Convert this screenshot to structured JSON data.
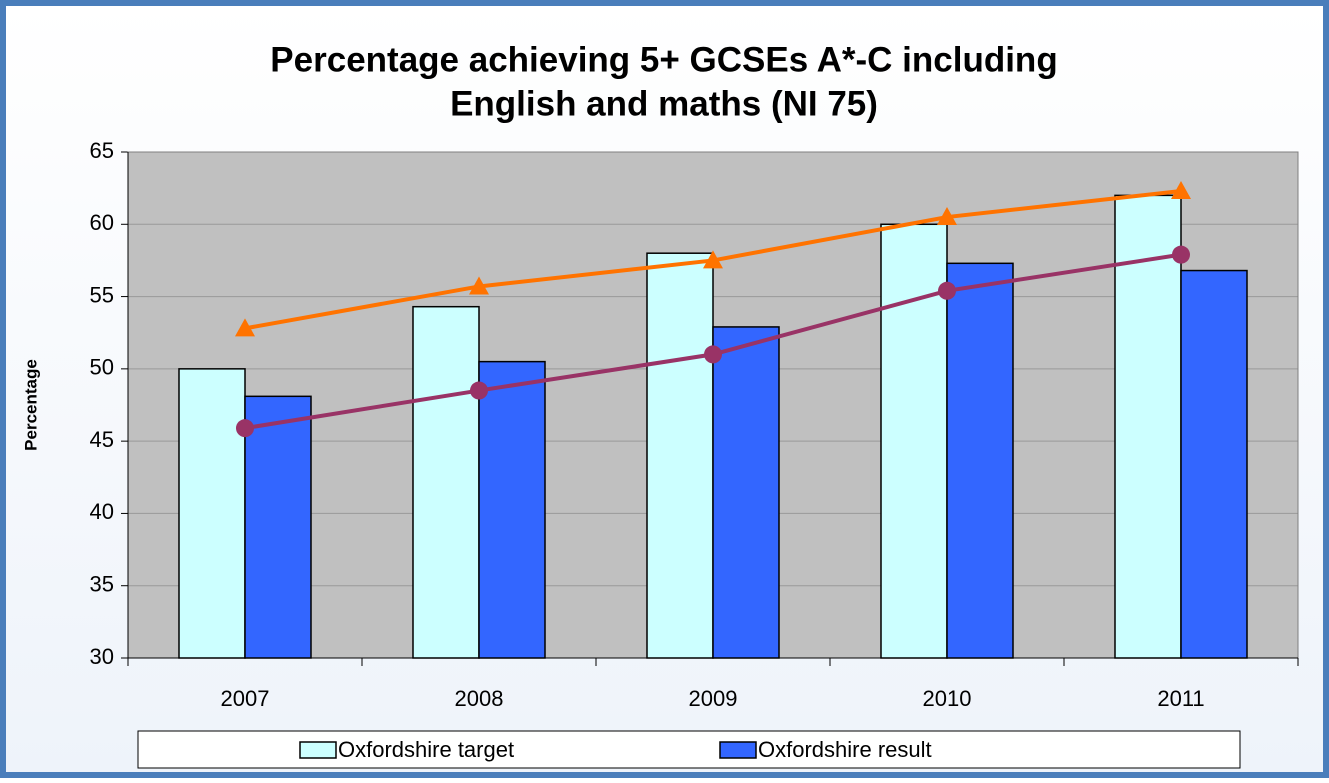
{
  "chart_data": {
    "type": "bar",
    "title": [
      "Percentage achieving 5+ GCSEs A*-C including",
      "English and maths (NI 75)"
    ],
    "y_label": "Percentage",
    "categories": [
      "2007",
      "2008",
      "2009",
      "2010",
      "2011"
    ],
    "series": [
      {
        "name": "Oxfordshire target",
        "type": "bar",
        "color": "#ccffff",
        "values": [
          50,
          54.3,
          58,
          60,
          62
        ]
      },
      {
        "name": "Oxfordshire result",
        "type": "bar",
        "color": "#3366ff",
        "values": [
          48.1,
          50.5,
          52.9,
          57.3,
          56.8
        ]
      },
      {
        "type": "line",
        "marker": "triangle",
        "color": "#ff7300",
        "values": [
          52.8,
          55.7,
          57.5,
          60.5,
          62.3
        ]
      },
      {
        "type": "line",
        "marker": "circle",
        "color": "#993366",
        "values": [
          45.9,
          48.5,
          51.0,
          55.4,
          57.9
        ]
      }
    ],
    "ylim": [
      30,
      65
    ],
    "yticks": [
      30,
      35,
      40,
      45,
      50,
      55,
      60,
      65
    ],
    "grid": true,
    "legend": "bottom"
  }
}
